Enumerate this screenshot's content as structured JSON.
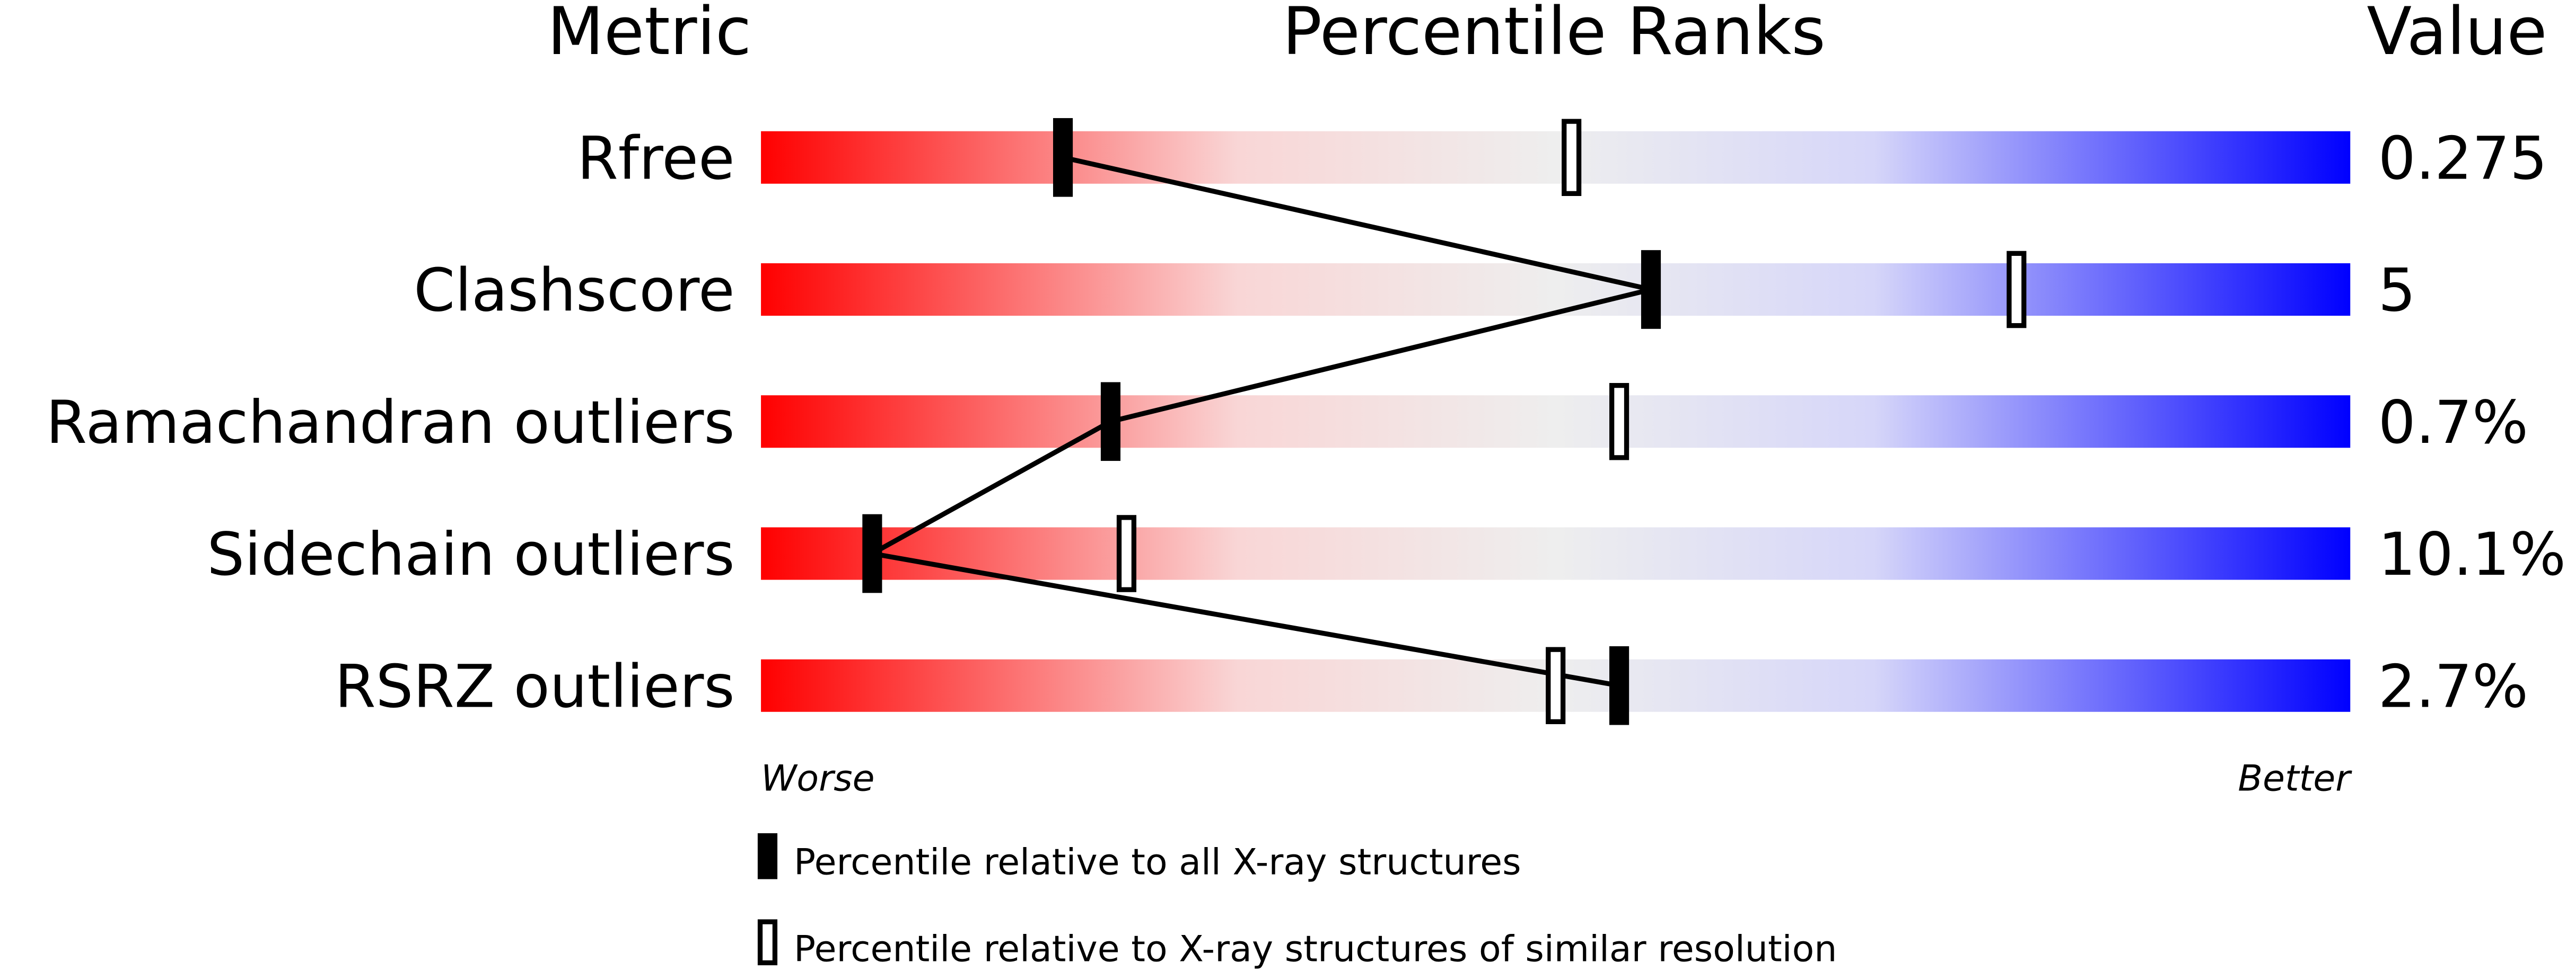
{
  "chart_data": {
    "type": "percentile-slider",
    "headers": {
      "metric": "Metric",
      "ranks": "Percentile Ranks",
      "value": "Value"
    },
    "xlim": [
      0,
      100
    ],
    "axis_labels": {
      "left": "Worse",
      "right": "Better"
    },
    "metrics": [
      {
        "name": "Rfree",
        "value": "0.275",
        "percentile_all": 19,
        "percentile_similar": 51
      },
      {
        "name": "Clashscore",
        "value": "5",
        "percentile_all": 56,
        "percentile_similar": 79
      },
      {
        "name": "Ramachandran outliers",
        "value": "0.7%",
        "percentile_all": 22,
        "percentile_similar": 54
      },
      {
        "name": "Sidechain outliers",
        "value": "10.1%",
        "percentile_all": 7,
        "percentile_similar": 23
      },
      {
        "name": "RSRZ outliers",
        "value": "2.7%",
        "percentile_all": 54,
        "percentile_similar": 50
      }
    ],
    "legend": {
      "filled": "Percentile relative to all X-ray structures",
      "open": "Percentile relative to X-ray structures of similar resolution"
    },
    "colors": {
      "worse": "#ff0000",
      "middle": "#eeeeee",
      "better": "#0000ff",
      "marker": "#000000"
    }
  }
}
